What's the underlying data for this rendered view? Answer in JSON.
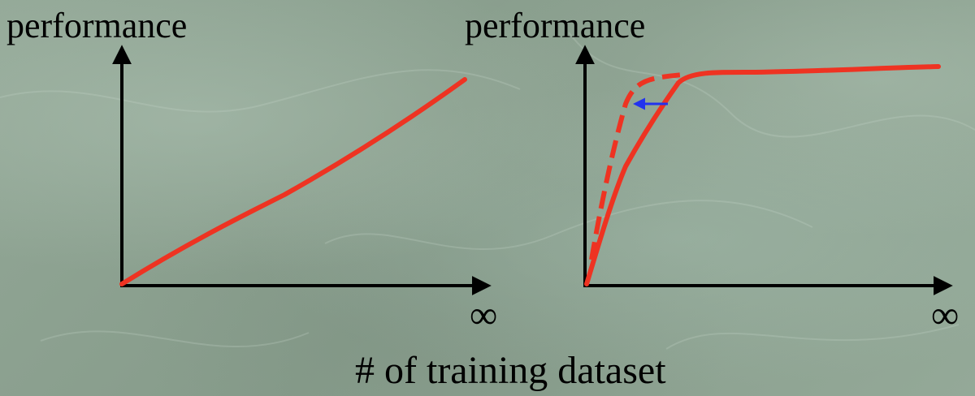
{
  "left_panel": {
    "y_label": "performance",
    "x_end_label": "∞"
  },
  "right_panel": {
    "y_label": "performance",
    "x_end_label": "∞"
  },
  "x_axis_title": "# of training dataset",
  "colors": {
    "curve": "#ee3322",
    "shift_arrow": "#2233ee",
    "axis": "#000000",
    "background": "#8fa393"
  }
}
